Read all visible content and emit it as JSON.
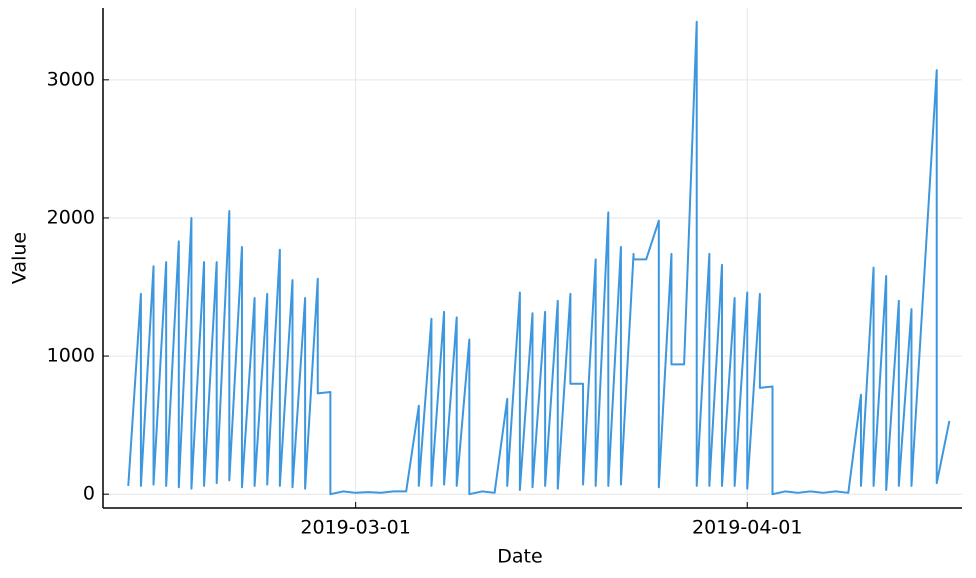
{
  "chart_data": {
    "type": "line",
    "xlabel": "Date",
    "ylabel": "Value",
    "x": [
      "2019-02-11",
      "2019-02-12",
      "2019-02-12",
      "2019-02-13",
      "2019-02-13",
      "2019-02-14",
      "2019-02-14",
      "2019-02-15",
      "2019-02-15",
      "2019-02-16",
      "2019-02-16",
      "2019-02-17",
      "2019-02-17",
      "2019-02-18",
      "2019-02-18",
      "2019-02-19",
      "2019-02-19",
      "2019-02-20",
      "2019-02-20",
      "2019-02-21",
      "2019-02-21",
      "2019-02-22",
      "2019-02-22",
      "2019-02-23",
      "2019-02-23",
      "2019-02-24",
      "2019-02-24",
      "2019-02-25",
      "2019-02-25",
      "2019-02-26",
      "2019-02-26",
      "2019-02-27",
      "2019-02-27",
      "2019-02-28",
      "2019-03-01",
      "2019-03-02",
      "2019-03-03",
      "2019-03-04",
      "2019-03-05",
      "2019-03-06",
      "2019-03-06",
      "2019-03-07",
      "2019-03-07",
      "2019-03-08",
      "2019-03-08",
      "2019-03-09",
      "2019-03-09",
      "2019-03-10",
      "2019-03-10",
      "2019-03-11",
      "2019-03-12",
      "2019-03-13",
      "2019-03-13",
      "2019-03-14",
      "2019-03-14",
      "2019-03-15",
      "2019-03-15",
      "2019-03-16",
      "2019-03-16",
      "2019-03-17",
      "2019-03-17",
      "2019-03-18",
      "2019-03-18",
      "2019-03-19",
      "2019-03-19",
      "2019-03-20",
      "2019-03-20",
      "2019-03-21",
      "2019-03-21",
      "2019-03-22",
      "2019-03-22",
      "2019-03-23",
      "2019-03-23",
      "2019-03-24",
      "2019-03-25",
      "2019-03-25",
      "2019-03-26",
      "2019-03-26",
      "2019-03-27",
      "2019-03-28",
      "2019-03-28",
      "2019-03-29",
      "2019-03-29",
      "2019-03-30",
      "2019-03-30",
      "2019-03-31",
      "2019-03-31",
      "2019-04-01",
      "2019-04-01",
      "2019-04-02",
      "2019-04-02",
      "2019-04-03",
      "2019-04-03",
      "2019-04-04",
      "2019-04-05",
      "2019-04-06",
      "2019-04-07",
      "2019-04-08",
      "2019-04-09",
      "2019-04-10",
      "2019-04-10",
      "2019-04-11",
      "2019-04-11",
      "2019-04-12",
      "2019-04-12",
      "2019-04-13",
      "2019-04-13",
      "2019-04-14",
      "2019-04-14",
      "2019-04-16",
      "2019-04-16",
      "2019-04-17"
    ],
    "series": [
      {
        "name": "Value",
        "color": "#3d97df",
        "values": [
          60,
          1450,
          60,
          1650,
          70,
          1680,
          60,
          1830,
          50,
          2000,
          40,
          1680,
          60,
          1680,
          80,
          2050,
          100,
          1790,
          50,
          1420,
          60,
          1450,
          70,
          1770,
          60,
          1550,
          50,
          1420,
          40,
          1560,
          730,
          740,
          0,
          20,
          10,
          15,
          10,
          20,
          20,
          640,
          60,
          1270,
          60,
          1320,
          70,
          1280,
          60,
          1120,
          0,
          20,
          10,
          690,
          60,
          1460,
          30,
          1310,
          50,
          1320,
          60,
          1400,
          40,
          1450,
          800,
          800,
          70,
          1700,
          60,
          2040,
          60,
          1790,
          70,
          1740,
          1700,
          1700,
          1980,
          50,
          1740,
          940,
          940,
          3420,
          60,
          1740,
          60,
          1660,
          60,
          1420,
          60,
          1460,
          40,
          1450,
          770,
          780,
          0,
          20,
          10,
          20,
          10,
          20,
          10,
          720,
          60,
          1640,
          60,
          1580,
          30,
          1400,
          60,
          1340,
          60,
          3070,
          80,
          530
        ]
      }
    ],
    "xlim": [
      "2019-02-09",
      "2019-04-18"
    ],
    "xticks": [
      "2019-03-01",
      "2019-04-01"
    ],
    "ylim": [
      -100,
      3520
    ],
    "yticks": [
      0,
      1000,
      2000,
      3000
    ],
    "grid": true
  }
}
